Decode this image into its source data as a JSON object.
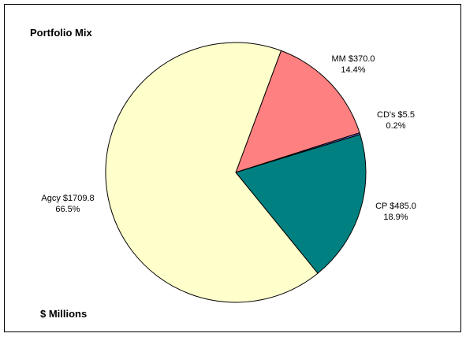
{
  "chart_data": {
    "type": "pie",
    "title": "Portfolio Mix",
    "subtitle": "$ Millions",
    "slices": [
      {
        "key": "mm",
        "label_line1": "MM $370.0",
        "label_line2": "14.4%",
        "value": 370.0,
        "percent": 14.4,
        "color": "#FF8080"
      },
      {
        "key": "cds",
        "label_line1": "CD's $5.5",
        "label_line2": "0.2%",
        "value": 5.5,
        "percent": 0.2,
        "color": "#6666CC"
      },
      {
        "key": "cp",
        "label_line1": "CP $485.0",
        "label_line2": "18.9%",
        "value": 485.0,
        "percent": 18.9,
        "color": "#008080"
      },
      {
        "key": "agcy",
        "label_line1": "Agcy $1709.8",
        "label_line2": "66.5%",
        "value": 1709.8,
        "percent": 66.5,
        "color": "#FFFFCC"
      }
    ],
    "start_direction": "clockwise from upper-right",
    "legend": "none"
  }
}
